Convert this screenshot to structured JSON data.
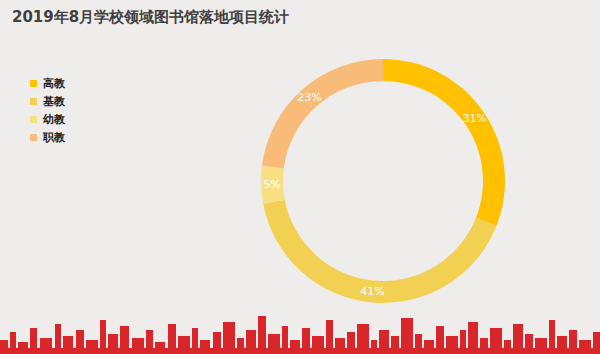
{
  "chart_data": {
    "type": "pie",
    "title": "2019年8月学校领域图书馆落地项目统计",
    "categories": [
      "高教",
      "基教",
      "幼教",
      "职教"
    ],
    "values": [
      31,
      41,
      5,
      23
    ],
    "value_labels": [
      "31%",
      "41%",
      "5%",
      "23%"
    ],
    "colors": [
      "#FFC000",
      "#F2D052",
      "#F7E084",
      "#F8BC78"
    ],
    "data_labels": true,
    "legend": "top-left"
  }
}
